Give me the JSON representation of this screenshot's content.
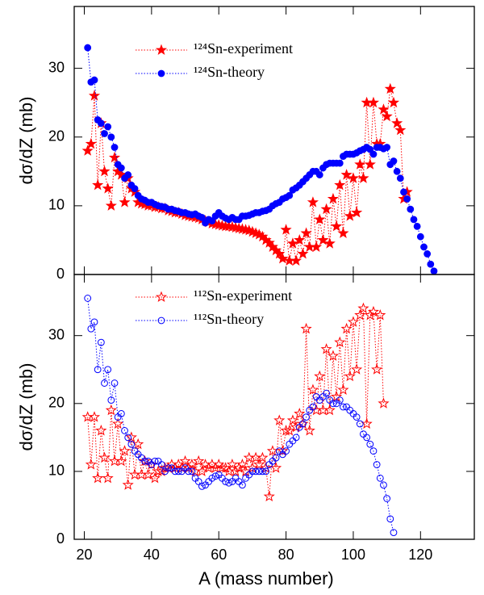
{
  "chart_data": [
    {
      "type": "scatter",
      "ylabel": "dσ/dZ (mb)",
      "xlim": [
        17,
        136
      ],
      "ylim": [
        0,
        39
      ],
      "xticks": [
        20,
        40,
        60,
        80,
        100,
        120
      ],
      "yticks": [
        0,
        10,
        20,
        30
      ],
      "show_xtick_labels": false,
      "series": [
        {
          "name": "¹²⁴Sn-experiment",
          "color": "#ff0000",
          "marker": "star",
          "filled": true,
          "x": [
            21,
            22,
            23,
            24,
            25,
            26,
            27,
            28,
            29,
            30,
            31,
            32,
            33,
            34,
            35,
            36,
            37,
            38,
            39,
            40,
            41,
            42,
            43,
            44,
            45,
            46,
            47,
            48,
            49,
            50,
            51,
            52,
            53,
            54,
            55,
            56,
            57,
            58,
            59,
            60,
            61,
            62,
            63,
            64,
            65,
            66,
            67,
            68,
            69,
            70,
            71,
            72,
            73,
            74,
            75,
            76,
            77,
            78,
            79,
            80,
            81,
            82,
            83,
            84,
            85,
            86,
            87,
            88,
            89,
            90,
            91,
            92,
            93,
            94,
            95,
            96,
            97,
            98,
            99,
            100,
            101,
            102,
            103,
            104,
            105,
            106,
            107,
            108,
            109,
            110,
            111,
            112,
            113,
            114,
            115,
            116
          ],
          "values": [
            18,
            19,
            26,
            13,
            22,
            15,
            12.5,
            10,
            17,
            15,
            14.5,
            10.5,
            14,
            12.5,
            12,
            10.5,
            10.3,
            10.2,
            10,
            10,
            9.8,
            9.8,
            9.6,
            9.6,
            9.3,
            9.2,
            9,
            9,
            8.8,
            8.6,
            8.5,
            8.4,
            8.3,
            8.2,
            8,
            7.8,
            7.6,
            7.4,
            7.3,
            7.2,
            7.1,
            7,
            7,
            6.9,
            6.8,
            6.7,
            6.6,
            6.5,
            6.4,
            6.2,
            6,
            5.8,
            5.5,
            5,
            4.6,
            4,
            3.5,
            3,
            2.3,
            6.5,
            2,
            4.5,
            2,
            5,
            3,
            6,
            4,
            10.5,
            4,
            8,
            5,
            9.5,
            4.5,
            11,
            7,
            13,
            6,
            14.5,
            8.5,
            14,
            9,
            16,
            14,
            25,
            16,
            25,
            19,
            19,
            24,
            23,
            27,
            25,
            22,
            21,
            11,
            12
          ]
        },
        {
          "name": "¹²⁴Sn-theory",
          "color": "#0000ff",
          "marker": "circle",
          "filled": true,
          "x": [
            21,
            22,
            23,
            24,
            25,
            26,
            27,
            28,
            29,
            30,
            31,
            32,
            33,
            34,
            35,
            36,
            37,
            38,
            39,
            40,
            41,
            42,
            43,
            44,
            45,
            46,
            47,
            48,
            49,
            50,
            51,
            52,
            53,
            54,
            55,
            56,
            57,
            58,
            59,
            60,
            61,
            62,
            63,
            64,
            65,
            66,
            67,
            68,
            69,
            70,
            71,
            72,
            73,
            74,
            75,
            76,
            77,
            78,
            79,
            80,
            81,
            82,
            83,
            84,
            85,
            86,
            87,
            88,
            89,
            90,
            91,
            92,
            93,
            94,
            95,
            96,
            97,
            98,
            99,
            100,
            101,
            102,
            103,
            104,
            105,
            106,
            107,
            108,
            109,
            110,
            111,
            112,
            113,
            114,
            115,
            116,
            117,
            118,
            119,
            120,
            121,
            122,
            123,
            124
          ],
          "values": [
            33,
            28,
            28.3,
            22.5,
            22,
            20.5,
            21.5,
            20,
            18.5,
            16,
            15.5,
            14,
            14.5,
            13,
            12.5,
            11.5,
            11,
            10.8,
            10.5,
            10.5,
            10.2,
            10,
            9.9,
            9.8,
            9.5,
            9.5,
            9.3,
            9.2,
            9,
            9,
            8.8,
            8.7,
            8.8,
            8.5,
            8.3,
            7.5,
            8,
            7.8,
            8.5,
            9,
            8.5,
            8.2,
            8,
            8.3,
            8,
            8,
            8.5,
            8.5,
            8.6,
            8.8,
            9,
            9,
            9.2,
            9.3,
            9.5,
            10,
            10.3,
            10.5,
            11,
            11.2,
            11.5,
            12.3,
            12.6,
            13,
            13.5,
            14,
            14.5,
            15,
            15,
            14.5,
            15.5,
            16,
            16.2,
            16.2,
            16.2,
            16.2,
            17.2,
            17.5,
            17.5,
            17.5,
            17.7,
            18,
            18.2,
            18.5,
            18.2,
            17.5,
            18.5,
            18.5,
            18.3,
            18.5,
            16,
            16.5,
            15,
            14,
            12,
            11,
            9.5,
            8,
            7,
            5.5,
            4,
            3,
            1.5,
            0.5
          ]
        }
      ]
    },
    {
      "type": "scatter",
      "ylabel": "dσ/dZ (mb)",
      "xlabel": "A (mass number)",
      "xlim": [
        17,
        136
      ],
      "ylim": [
        0,
        39
      ],
      "xticks": [
        20,
        40,
        60,
        80,
        100,
        120
      ],
      "yticks": [
        0,
        10,
        20,
        30
      ],
      "show_xtick_labels": true,
      "series": [
        {
          "name": "¹¹²Sn-experiment",
          "color": "#ff0000",
          "marker": "star",
          "filled": false,
          "x": [
            21,
            22,
            23,
            24,
            25,
            26,
            27,
            28,
            29,
            30,
            31,
            32,
            33,
            34,
            35,
            36,
            37,
            38,
            39,
            40,
            41,
            42,
            43,
            44,
            45,
            46,
            47,
            48,
            49,
            50,
            51,
            52,
            53,
            54,
            55,
            56,
            57,
            58,
            59,
            60,
            61,
            62,
            63,
            64,
            65,
            66,
            67,
            68,
            69,
            70,
            71,
            72,
            73,
            74,
            75,
            76,
            77,
            78,
            79,
            80,
            81,
            82,
            83,
            84,
            85,
            86,
            87,
            88,
            89,
            90,
            91,
            92,
            93,
            94,
            95,
            96,
            97,
            98,
            99,
            100,
            101,
            102,
            103,
            104,
            105,
            106,
            107,
            108,
            109
          ],
          "values": [
            18,
            11,
            18,
            9,
            16,
            12,
            9,
            19,
            11.5,
            17,
            11.5,
            13,
            8,
            15,
            9.5,
            14,
            9.5,
            11.5,
            9.5,
            11,
            9,
            10,
            10,
            10.5,
            10.5,
            11,
            10.5,
            11,
            10.5,
            11.5,
            10.5,
            11,
            10,
            11.5,
            10,
            11,
            10.5,
            11,
            10.5,
            11,
            10.5,
            10.5,
            10,
            11,
            10,
            10.5,
            11,
            10,
            12,
            10.5,
            12,
            11,
            12,
            10.5,
            6.3,
            13,
            10.5,
            17.5,
            13,
            16,
            16,
            17.5,
            16.5,
            18.5,
            17,
            31,
            16,
            22,
            19,
            24,
            19,
            28,
            19,
            27,
            21,
            29,
            22,
            31,
            24,
            32,
            25,
            33,
            34,
            17,
            33,
            33.5,
            25,
            33,
            20
          ]
        },
        {
          "name": "¹¹²Sn-theory",
          "color": "#0000ff",
          "marker": "circle",
          "filled": false,
          "x": [
            21,
            22,
            23,
            24,
            25,
            26,
            27,
            28,
            29,
            30,
            31,
            32,
            33,
            34,
            35,
            36,
            37,
            38,
            39,
            40,
            41,
            42,
            43,
            44,
            45,
            46,
            47,
            48,
            49,
            50,
            51,
            52,
            53,
            54,
            55,
            56,
            57,
            58,
            59,
            60,
            61,
            62,
            63,
            64,
            65,
            66,
            67,
            68,
            69,
            70,
            71,
            72,
            73,
            74,
            75,
            76,
            77,
            78,
            79,
            80,
            81,
            82,
            83,
            84,
            85,
            86,
            87,
            88,
            89,
            90,
            91,
            92,
            93,
            94,
            95,
            96,
            97,
            98,
            99,
            100,
            101,
            102,
            103,
            104,
            105,
            106,
            107,
            108,
            109,
            110,
            111,
            112
          ],
          "values": [
            35.5,
            31,
            32,
            25,
            29,
            23,
            25,
            20.5,
            23,
            18,
            18.5,
            16,
            15,
            14,
            13,
            12.5,
            12,
            11.5,
            11.5,
            11,
            11.5,
            11.5,
            11,
            10,
            10.5,
            10.5,
            10,
            10,
            10,
            10.5,
            10,
            10,
            9,
            8.5,
            7.8,
            8,
            8.5,
            9,
            9.3,
            9.5,
            9,
            8.5,
            8.3,
            8.5,
            9,
            8.5,
            8,
            9,
            9.5,
            10,
            10,
            10,
            10,
            10,
            11,
            11.5,
            12,
            13,
            12.5,
            13,
            14,
            14.5,
            15,
            16.5,
            17,
            18,
            19,
            19.5,
            21,
            20.5,
            21,
            21.5,
            20.5,
            20,
            20,
            20.5,
            19.5,
            19.5,
            19,
            18.5,
            18,
            17,
            15.5,
            15,
            14,
            13,
            11,
            9,
            8,
            6,
            3,
            1
          ]
        }
      ]
    }
  ]
}
